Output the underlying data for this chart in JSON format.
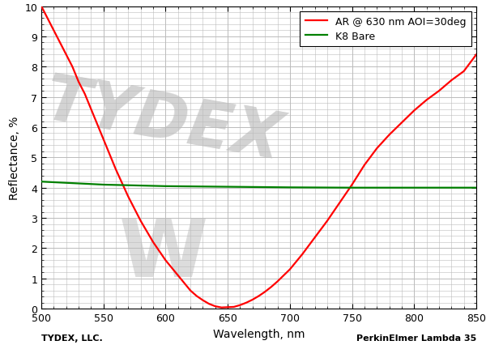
{
  "x_min": 500,
  "x_max": 850,
  "y_min": 0,
  "y_max": 10,
  "xlabel": "Wavelength, nm",
  "ylabel": "Reflectance, %",
  "xticks": [
    500,
    550,
    600,
    650,
    700,
    750,
    800,
    850
  ],
  "yticks": [
    0,
    1,
    2,
    3,
    4,
    5,
    6,
    7,
    8,
    9,
    10
  ],
  "legend_labels": [
    "AR @ 630 nm AOI=30deg",
    "K8 Bare"
  ],
  "line_colors": [
    "#ff0000",
    "#008000"
  ],
  "grid_color": "#bbbbbb",
  "background_color": "#ffffff",
  "watermark_text": "TYDEX",
  "watermark_logo": "W",
  "footer_left": "TYDEX, LLC.",
  "footer_right": "PerkinElmer Lambda 35",
  "axis_fontsize": 10,
  "tick_fontsize": 9,
  "legend_fontsize": 9,
  "footer_fontsize": 8,
  "ar_wavelengths": [
    500,
    505,
    510,
    515,
    520,
    525,
    530,
    535,
    540,
    545,
    550,
    555,
    560,
    565,
    570,
    575,
    580,
    585,
    590,
    595,
    600,
    605,
    610,
    615,
    620,
    625,
    630,
    635,
    640,
    645,
    650,
    655,
    660,
    665,
    670,
    675,
    680,
    685,
    690,
    695,
    700,
    710,
    720,
    730,
    740,
    750,
    760,
    770,
    780,
    790,
    800,
    810,
    820,
    830,
    840,
    850
  ],
  "ar_values": [
    10.0,
    9.6,
    9.2,
    8.8,
    8.4,
    8.0,
    7.5,
    7.1,
    6.6,
    6.1,
    5.6,
    5.1,
    4.6,
    4.15,
    3.7,
    3.3,
    2.9,
    2.55,
    2.2,
    1.9,
    1.6,
    1.35,
    1.1,
    0.85,
    0.6,
    0.42,
    0.28,
    0.16,
    0.08,
    0.04,
    0.05,
    0.06,
    0.12,
    0.2,
    0.3,
    0.42,
    0.56,
    0.72,
    0.9,
    1.1,
    1.3,
    1.8,
    2.35,
    2.9,
    3.5,
    4.1,
    4.75,
    5.3,
    5.75,
    6.15,
    6.55,
    6.9,
    7.2,
    7.55,
    7.85,
    8.4
  ],
  "k8_wavelengths": [
    500,
    550,
    600,
    650,
    700,
    750,
    800,
    850
  ],
  "k8_values": [
    4.2,
    4.1,
    4.05,
    4.03,
    4.01,
    4.0,
    4.0,
    4.0
  ]
}
